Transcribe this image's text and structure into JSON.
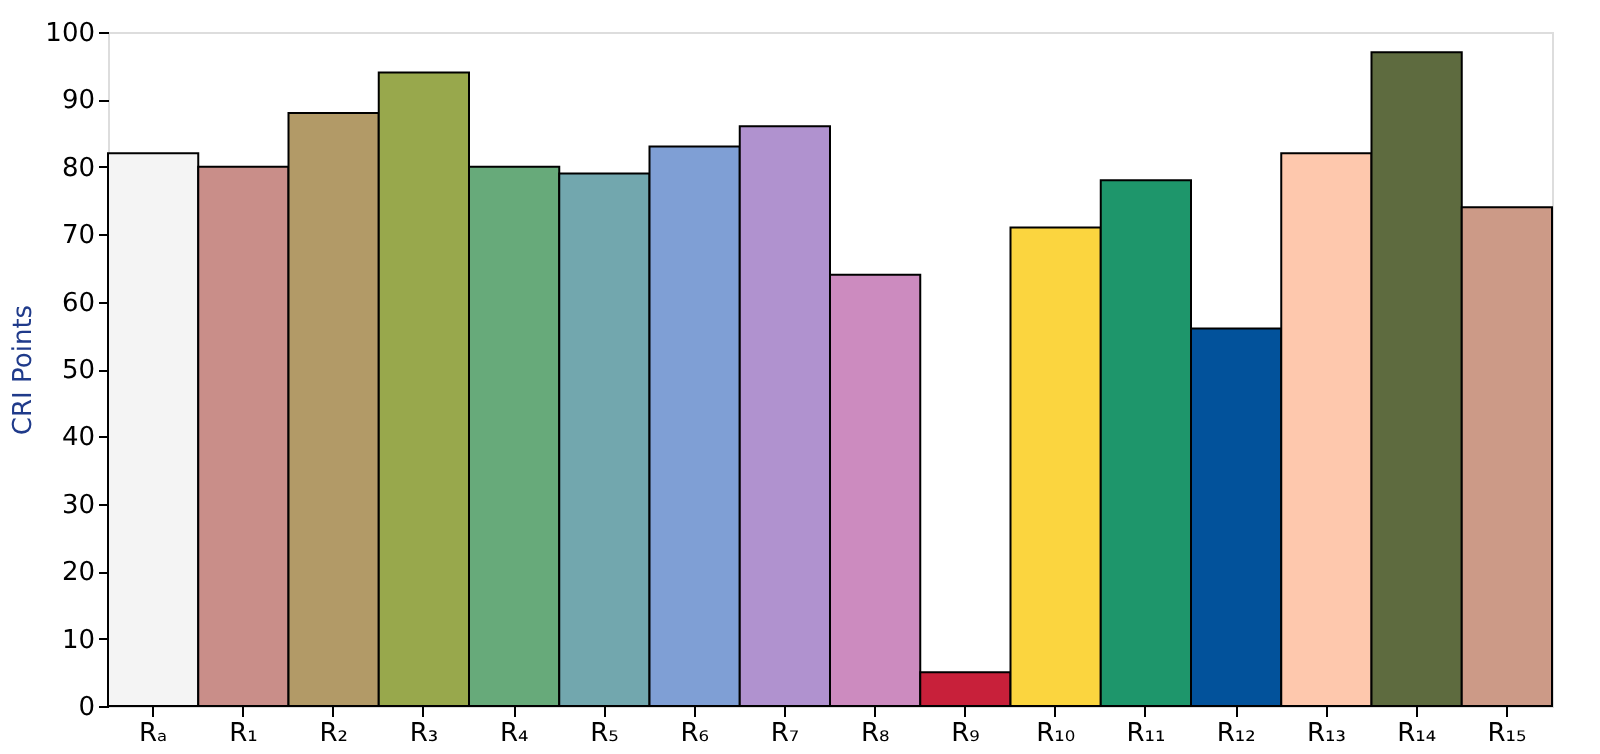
{
  "chart_data": {
    "type": "bar",
    "ylabel": "CRI Points",
    "categories": [
      "Rₐ",
      "R₁",
      "R₂",
      "R₃",
      "R₄",
      "R₅",
      "R₆",
      "R₇",
      "R₈",
      "R₉",
      "R₁₀",
      "R₁₁",
      "R₁₂",
      "R₁₃",
      "R₁₄",
      "R₁₅"
    ],
    "values": [
      82,
      80,
      88,
      94,
      80,
      79,
      83,
      86,
      64,
      5,
      71,
      78,
      56,
      82,
      97,
      74
    ],
    "colors": [
      "#f4f4f4",
      "#c98e89",
      "#b29a67",
      "#98a84c",
      "#67aa7a",
      "#72a7ae",
      "#7f9fd5",
      "#b092cf",
      "#cc8bbf",
      "#c8203a",
      "#fbd53f",
      "#1e966b",
      "#02529b",
      "#fec8ad",
      "#5e6b3f",
      "#cc9a87"
    ],
    "ylim": [
      0,
      100
    ],
    "yticks": [
      0,
      10,
      20,
      30,
      40,
      50,
      60,
      70,
      80,
      90,
      100
    ],
    "grid": false,
    "legend": false
  }
}
